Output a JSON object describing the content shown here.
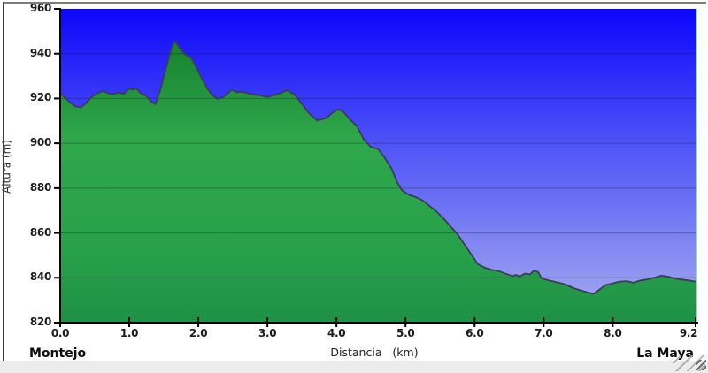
{
  "chart_data": {
    "type": "area",
    "xlabel": "Distancia   (km)",
    "ylabel": "Altura (m)",
    "start_label": "Montejo",
    "end_label": "La Maya",
    "xlim": [
      0,
      9.2
    ],
    "ylim": [
      820,
      960
    ],
    "grid": "horizontal",
    "x_ticks": [
      {
        "value": 0.0,
        "label": "0.0"
      },
      {
        "value": 1.0,
        "label": "1.0"
      },
      {
        "value": 2.0,
        "label": "2.0"
      },
      {
        "value": 3.0,
        "label": "3.0"
      },
      {
        "value": 4.0,
        "label": "4.0"
      },
      {
        "value": 5.0,
        "label": "5.0"
      },
      {
        "value": 6.0,
        "label": "6.0"
      },
      {
        "value": 7.0,
        "label": "7.0"
      },
      {
        "value": 8.0,
        "label": "8.0"
      },
      {
        "value": 9.2,
        "label": "9.2"
      }
    ],
    "y_ticks": [
      {
        "value": 820,
        "label": "820"
      },
      {
        "value": 840,
        "label": "840"
      },
      {
        "value": 860,
        "label": "860"
      },
      {
        "value": 880,
        "label": "880"
      },
      {
        "value": 900,
        "label": "900"
      },
      {
        "value": 920,
        "label": "920"
      },
      {
        "value": 940,
        "label": "940"
      },
      {
        "value": 960,
        "label": "960"
      }
    ],
    "series": [
      {
        "name": "elevation-profile",
        "x": [
          0.0,
          0.08,
          0.15,
          0.22,
          0.3,
          0.38,
          0.45,
          0.55,
          0.62,
          0.7,
          0.75,
          0.8,
          0.86,
          0.92,
          1.0,
          1.05,
          1.1,
          1.17,
          1.25,
          1.32,
          1.38,
          1.45,
          1.52,
          1.58,
          1.63,
          1.66,
          1.7,
          1.75,
          1.82,
          1.9,
          1.97,
          2.05,
          2.13,
          2.2,
          2.28,
          2.35,
          2.42,
          2.48,
          2.55,
          2.62,
          2.7,
          2.8,
          2.9,
          3.0,
          3.1,
          3.2,
          3.29,
          3.4,
          3.5,
          3.6,
          3.72,
          3.85,
          3.95,
          4.02,
          4.1,
          4.2,
          4.3,
          4.4,
          4.5,
          4.6,
          4.7,
          4.8,
          4.88,
          4.95,
          5.05,
          5.15,
          5.25,
          5.35,
          5.45,
          5.55,
          5.65,
          5.75,
          5.85,
          5.95,
          6.05,
          6.15,
          6.25,
          6.35,
          6.45,
          6.55,
          6.6,
          6.65,
          6.73,
          6.8,
          6.86,
          6.92,
          6.97,
          7.05,
          7.15,
          7.3,
          7.45,
          7.6,
          7.72,
          7.8,
          7.9,
          8.0,
          8.1,
          8.2,
          8.3,
          8.4,
          8.5,
          8.62,
          8.7,
          8.8,
          8.9,
          9.0,
          9.1,
          9.2
        ],
        "y": [
          922.5,
          920,
          918,
          916.5,
          916,
          918,
          920.5,
          922.5,
          923.3,
          922.3,
          921.8,
          922.3,
          922.7,
          922,
          924.3,
          924,
          924.5,
          922.3,
          921,
          918.5,
          917.5,
          924,
          932,
          939,
          944,
          945.5,
          944,
          941.5,
          939.5,
          938,
          934,
          929,
          924.5,
          921.5,
          919.8,
          920.5,
          922,
          924,
          922.8,
          923,
          922.5,
          921.8,
          921.3,
          920.6,
          921.5,
          922.5,
          923.7,
          921.5,
          917.5,
          913.5,
          910.2,
          911.2,
          913.8,
          915.2,
          914,
          910.5,
          907.5,
          901.5,
          898.3,
          897.5,
          893.5,
          888.5,
          882.5,
          879,
          877,
          876,
          874.5,
          872,
          869.5,
          866.5,
          863,
          859.5,
          855,
          850.5,
          846,
          844.5,
          843.5,
          843,
          841.8,
          840.8,
          841.3,
          840.6,
          841.9,
          841.5,
          843.2,
          842.5,
          839.8,
          839,
          838.3,
          837.2,
          835.2,
          833.8,
          832.8,
          834.5,
          836.8,
          837.5,
          838.3,
          838.5,
          837.8,
          838.8,
          839.3,
          840.2,
          841,
          840.5,
          839.7,
          839.2,
          838.8,
          838.3
        ]
      }
    ],
    "colors": {
      "sky_top": "#0c06fa",
      "sky_mid": "#5358f7",
      "sky_bottom": "#a9aeee",
      "land_0": "#0d6d24",
      "land_1": "#17802e",
      "land_2": "#2fa84b",
      "land_3": "#27a04a",
      "land_4": "#1f9145",
      "outline": "#3a3d58",
      "axis": "#000000",
      "grid": "#14142a",
      "plot_right_border": "#98d5bb"
    }
  }
}
